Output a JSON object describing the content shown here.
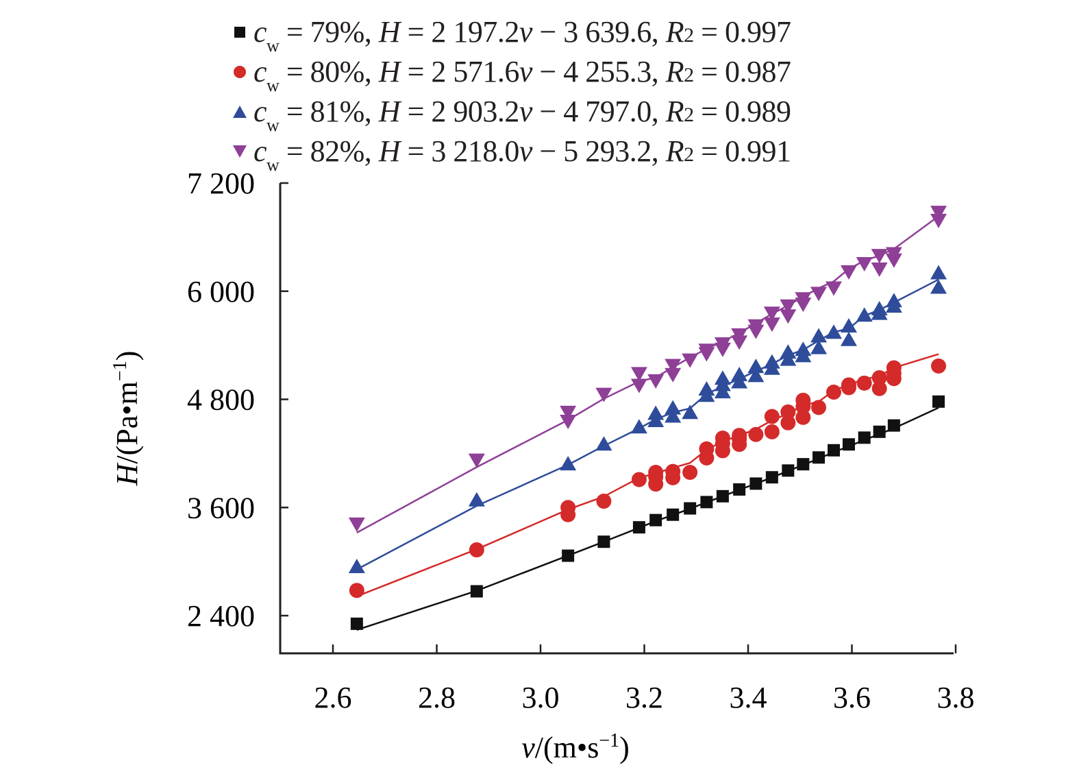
{
  "chart_data": {
    "type": "scatter",
    "title": "",
    "xlabel": "v/(m•s⁻¹)",
    "ylabel": "H/(Pa•m⁻¹)",
    "xlim": [
      2.5,
      3.8
    ],
    "ylim": [
      2130,
      7200
    ],
    "xticks": [
      2.6,
      2.8,
      3.0,
      3.2,
      3.4,
      3.6,
      3.8
    ],
    "xtick_labels": [
      "2.6",
      "2.8",
      "3.0",
      "3.2",
      "3.4",
      "3.6",
      "3.8"
    ],
    "yticks": [
      2400,
      3600,
      4800,
      6000,
      7200
    ],
    "ytick_labels": [
      "2 400",
      "3 600",
      "4 800",
      "6 000",
      "7 200"
    ],
    "grid": false,
    "legend_position": "top",
    "series": [
      {
        "name": "cw = 79%",
        "marker": "square",
        "color": "#111111",
        "fit": {
          "slope": 2197.2,
          "intercept": -3639.6,
          "r2": 0.997
        },
        "legend_label": {
          "cw": "79%",
          "slope": "2 197.2",
          "intercept": "3 639.6",
          "r2": "0.997"
        },
        "x": [
          2.646,
          2.877,
          3.053,
          3.122,
          3.19,
          3.222,
          3.255,
          3.288,
          3.32,
          3.351,
          3.383,
          3.415,
          3.446,
          3.477,
          3.506,
          3.536,
          3.565,
          3.594,
          3.624,
          3.653,
          3.681,
          3.767
        ],
        "y": [
          2310,
          2670,
          3065,
          3220,
          3380,
          3460,
          3520,
          3590,
          3660,
          3725,
          3800,
          3865,
          3935,
          4010,
          4080,
          4155,
          4235,
          4300,
          4375,
          4440,
          4510,
          4775
        ]
      },
      {
        "name": "cw = 80%",
        "marker": "circle",
        "color": "#d42a2a",
        "fit": {
          "slope": 2571.6,
          "intercept": -4255.3,
          "r2": 0.987
        },
        "legend_label": {
          "cw": "80%",
          "slope": "2 571.6",
          "intercept": "4 255.3",
          "r2": "0.987"
        },
        "x": [
          2.646,
          2.877,
          3.053,
          3.053,
          3.122,
          3.19,
          3.222,
          3.222,
          3.222,
          3.255,
          3.255,
          3.288,
          3.32,
          3.32,
          3.351,
          3.351,
          3.351,
          3.383,
          3.383,
          3.383,
          3.415,
          3.446,
          3.446,
          3.477,
          3.477,
          3.506,
          3.506,
          3.506,
          3.536,
          3.565,
          3.594,
          3.594,
          3.624,
          3.653,
          3.653,
          3.681,
          3.681,
          3.681,
          3.767
        ],
        "y": [
          2680,
          3130,
          3520,
          3600,
          3670,
          3910,
          3860,
          3940,
          3990,
          3930,
          4000,
          3990,
          4150,
          4250,
          4230,
          4310,
          4370,
          4300,
          4360,
          4400,
          4410,
          4440,
          4610,
          4540,
          4660,
          4600,
          4720,
          4790,
          4710,
          4880,
          4930,
          4960,
          4980,
          4920,
          5040,
          5030,
          5090,
          5150,
          5170
        ]
      },
      {
        "name": "cw = 81%",
        "marker": "triangle-up",
        "color": "#2e4c9a",
        "fit": {
          "slope": 2903.2,
          "intercept": -4797.0,
          "r2": 0.989
        },
        "legend_label": {
          "cw": "81%",
          "slope": "2 903.2",
          "intercept": "4 797.0",
          "r2": "0.989"
        },
        "x": [
          2.646,
          2.877,
          3.053,
          3.122,
          3.19,
          3.222,
          3.222,
          3.255,
          3.255,
          3.288,
          3.32,
          3.32,
          3.351,
          3.351,
          3.351,
          3.383,
          3.383,
          3.415,
          3.415,
          3.446,
          3.446,
          3.477,
          3.477,
          3.506,
          3.506,
          3.536,
          3.536,
          3.565,
          3.594,
          3.594,
          3.624,
          3.653,
          3.653,
          3.681,
          3.681,
          3.767,
          3.767
        ],
        "y": [
          2940,
          3680,
          4080,
          4300,
          4490,
          4560,
          4640,
          4610,
          4700,
          4650,
          4840,
          4910,
          4880,
          4960,
          5030,
          4990,
          5070,
          5060,
          5160,
          5140,
          5210,
          5240,
          5320,
          5280,
          5350,
          5370,
          5500,
          5540,
          5460,
          5610,
          5730,
          5750,
          5800,
          5830,
          5890,
          6040,
          6200
        ]
      },
      {
        "name": "cw = 82%",
        "marker": "triangle-down",
        "color": "#8e3f96",
        "fit": {
          "slope": 3218.0,
          "intercept": -5293.2,
          "r2": 0.991
        },
        "legend_label": {
          "cw": "82%",
          "slope": "3 218.0",
          "intercept": "5 293.2",
          "r2": "0.991"
        },
        "x": [
          2.646,
          2.877,
          3.053,
          3.053,
          3.122,
          3.19,
          3.19,
          3.222,
          3.255,
          3.255,
          3.288,
          3.32,
          3.32,
          3.351,
          3.351,
          3.383,
          3.383,
          3.415,
          3.415,
          3.446,
          3.446,
          3.477,
          3.477,
          3.506,
          3.506,
          3.536,
          3.565,
          3.594,
          3.624,
          3.653,
          3.653,
          3.681,
          3.681,
          3.767,
          3.767
        ],
        "y": [
          3420,
          4130,
          4560,
          4660,
          4860,
          4960,
          5090,
          5010,
          5080,
          5180,
          5240,
          5310,
          5350,
          5360,
          5420,
          5440,
          5520,
          5560,
          5620,
          5640,
          5760,
          5730,
          5840,
          5860,
          5920,
          5980,
          6040,
          6220,
          6310,
          6250,
          6400,
          6350,
          6420,
          6790,
          6880
        ]
      }
    ]
  }
}
